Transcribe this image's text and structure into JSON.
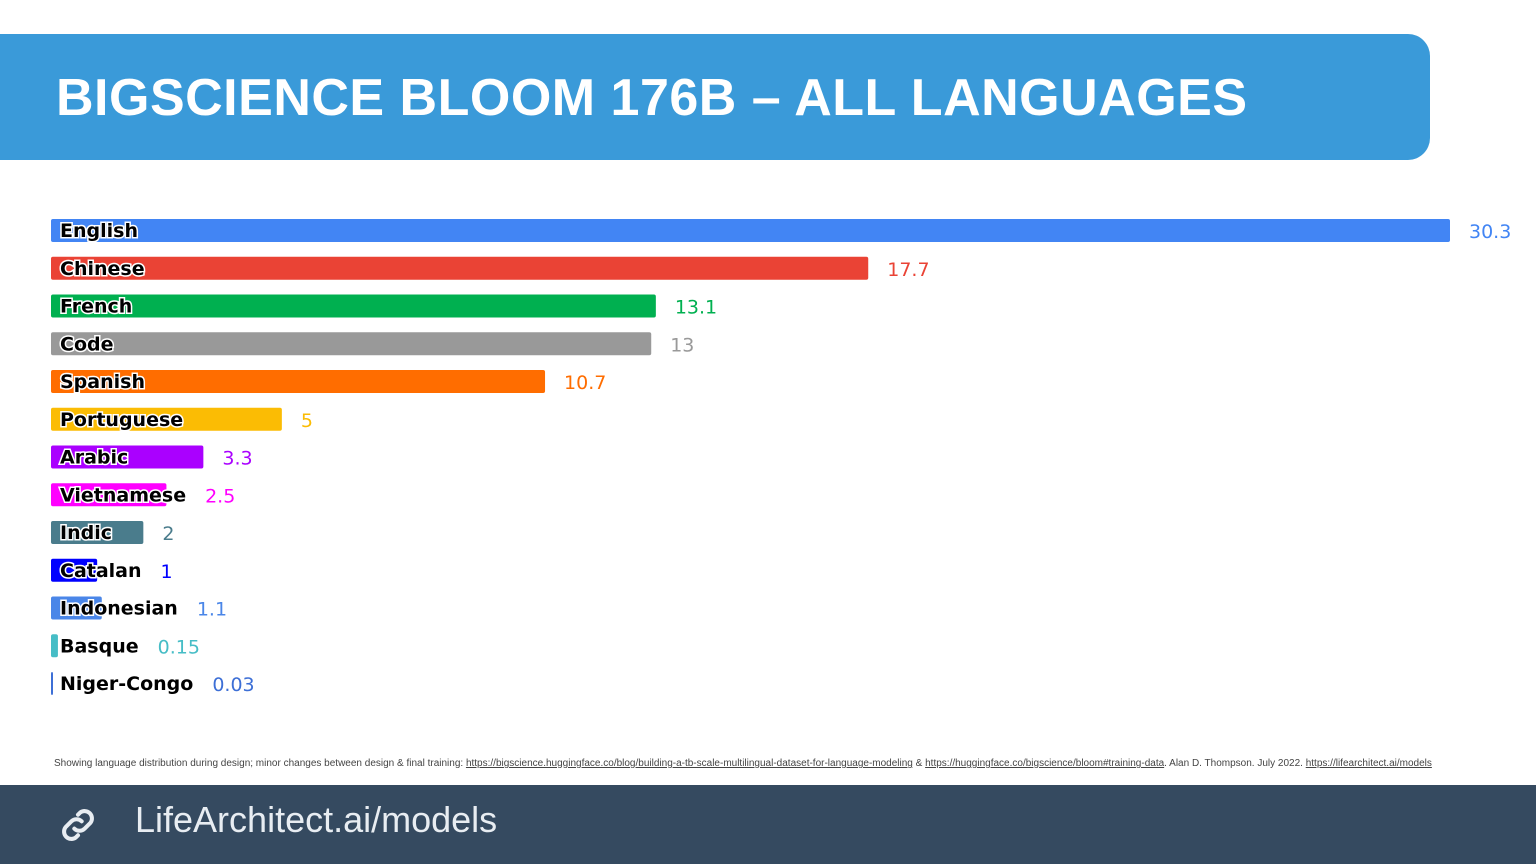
{
  "title": "BIGSCIENCE BLOOM 176B – ALL LANGUAGES",
  "chart_data": {
    "type": "bar",
    "orientation": "horizontal",
    "categories": [
      "English",
      "Chinese",
      "French",
      "Code",
      "Spanish",
      "Portuguese",
      "Arabic",
      "Vietnamese",
      "Indic",
      "Catalan",
      "Indonesian",
      "Basque",
      "Niger-Congo"
    ],
    "values": [
      30.3,
      17.7,
      13.1,
      13,
      10.7,
      5,
      3.3,
      2.5,
      2,
      1,
      1.1,
      0.15,
      0.03
    ],
    "value_labels": [
      "30.3",
      "17.7",
      "13.1",
      "13",
      "10.7",
      "5",
      "3.3",
      "2.5",
      "2",
      "1",
      "1.1",
      "0.15",
      "0.03"
    ],
    "colors": [
      "#4285f4",
      "#ea4335",
      "#00b050",
      "#999999",
      "#ff6d00",
      "#fbbc04",
      "#aa00ff",
      "#ff00ff",
      "#4a7c8c",
      "#0000ff",
      "#4a86e8",
      "#46bdc6",
      "#3d6fd6"
    ],
    "xlim": [
      0,
      30.3
    ],
    "grid": false,
    "legend": "none"
  },
  "footnote": {
    "text1": "Showing language distribution during design; minor changes between design & final training: ",
    "link1": "https://bigscience.huggingface.co/blog/building-a-tb-scale-multilingual-dataset-for-language-modeling",
    "sep": " & ",
    "link2": "https://huggingface.co/bigscience/bloom#training-data",
    "text2": ". Alan D. Thompson. July 2022. ",
    "link3": "https://lifearchitect.ai/models"
  },
  "footer": {
    "text": "LifeArchitect.ai/models",
    "icon": "link-icon"
  }
}
